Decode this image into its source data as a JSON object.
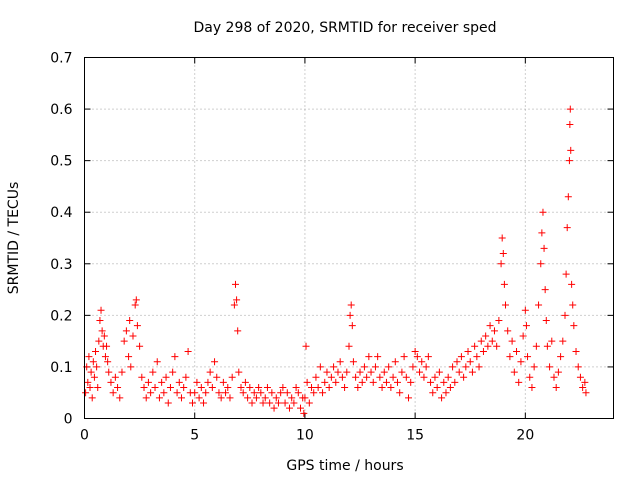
{
  "chart_data": {
    "type": "scatter",
    "title": "Day 298 of 2020, SRMTID for receiver sped",
    "xlabel": "GPS time / hours",
    "ylabel": "SRMTID / TECUs",
    "xlim": [
      0,
      24
    ],
    "ylim": [
      0,
      0.7
    ],
    "xticks": [
      0,
      5,
      10,
      15,
      20
    ],
    "yticks": [
      0,
      0.1,
      0.2,
      0.3,
      0.4,
      0.5,
      0.6,
      0.7
    ],
    "grid": true,
    "marker": "plus",
    "series": [
      {
        "name": "SRMTID",
        "color": "#ff0000",
        "points": [
          [
            0.05,
            0.05
          ],
          [
            0.1,
            0.1
          ],
          [
            0.15,
            0.07
          ],
          [
            0.2,
            0.12
          ],
          [
            0.25,
            0.06
          ],
          [
            0.3,
            0.09
          ],
          [
            0.35,
            0.04
          ],
          [
            0.4,
            0.11
          ],
          [
            0.45,
            0.08
          ],
          [
            0.5,
            0.13
          ],
          [
            0.55,
            0.1
          ],
          [
            0.6,
            0.06
          ],
          [
            0.65,
            0.15
          ],
          [
            0.7,
            0.19
          ],
          [
            0.75,
            0.21
          ],
          [
            0.8,
            0.17
          ],
          [
            0.85,
            0.14
          ],
          [
            0.9,
            0.16
          ],
          [
            0.95,
            0.12
          ],
          [
            1.0,
            0.14
          ],
          [
            1.05,
            0.11
          ],
          [
            1.1,
            0.09
          ],
          [
            1.2,
            0.07
          ],
          [
            1.3,
            0.05
          ],
          [
            1.4,
            0.08
          ],
          [
            1.5,
            0.06
          ],
          [
            1.6,
            0.04
          ],
          [
            1.7,
            0.09
          ],
          [
            1.8,
            0.15
          ],
          [
            1.9,
            0.17
          ],
          [
            2.0,
            0.12
          ],
          [
            2.05,
            0.19
          ],
          [
            2.1,
            0.1
          ],
          [
            2.2,
            0.16
          ],
          [
            2.3,
            0.22
          ],
          [
            2.35,
            0.23
          ],
          [
            2.4,
            0.18
          ],
          [
            2.5,
            0.14
          ],
          [
            2.6,
            0.08
          ],
          [
            2.7,
            0.06
          ],
          [
            2.8,
            0.04
          ],
          [
            2.9,
            0.07
          ],
          [
            3.0,
            0.05
          ],
          [
            3.1,
            0.09
          ],
          [
            3.2,
            0.06
          ],
          [
            3.3,
            0.11
          ],
          [
            3.4,
            0.04
          ],
          [
            3.5,
            0.07
          ],
          [
            3.6,
            0.05
          ],
          [
            3.7,
            0.08
          ],
          [
            3.8,
            0.03
          ],
          [
            3.9,
            0.06
          ],
          [
            4.0,
            0.09
          ],
          [
            4.1,
            0.12
          ],
          [
            4.2,
            0.05
          ],
          [
            4.3,
            0.07
          ],
          [
            4.4,
            0.04
          ],
          [
            4.5,
            0.06
          ],
          [
            4.6,
            0.08
          ],
          [
            4.7,
            0.13
          ],
          [
            4.8,
            0.05
          ],
          [
            4.9,
            0.03
          ],
          [
            5.0,
            0.05
          ],
          [
            5.1,
            0.07
          ],
          [
            5.2,
            0.04
          ],
          [
            5.3,
            0.06
          ],
          [
            5.4,
            0.03
          ],
          [
            5.5,
            0.05
          ],
          [
            5.6,
            0.07
          ],
          [
            5.7,
            0.09
          ],
          [
            5.8,
            0.06
          ],
          [
            5.9,
            0.11
          ],
          [
            6.0,
            0.08
          ],
          [
            6.1,
            0.05
          ],
          [
            6.2,
            0.04
          ],
          [
            6.3,
            0.07
          ],
          [
            6.4,
            0.05
          ],
          [
            6.5,
            0.06
          ],
          [
            6.6,
            0.04
          ],
          [
            6.7,
            0.08
          ],
          [
            6.8,
            0.22
          ],
          [
            6.85,
            0.26
          ],
          [
            6.9,
            0.23
          ],
          [
            6.95,
            0.17
          ],
          [
            7.0,
            0.09
          ],
          [
            7.1,
            0.06
          ],
          [
            7.2,
            0.05
          ],
          [
            7.3,
            0.07
          ],
          [
            7.4,
            0.04
          ],
          [
            7.5,
            0.06
          ],
          [
            7.6,
            0.03
          ],
          [
            7.7,
            0.05
          ],
          [
            7.8,
            0.04
          ],
          [
            7.9,
            0.06
          ],
          [
            8.0,
            0.05
          ],
          [
            8.1,
            0.03
          ],
          [
            8.2,
            0.04
          ],
          [
            8.3,
            0.06
          ],
          [
            8.4,
            0.03
          ],
          [
            8.5,
            0.05
          ],
          [
            8.6,
            0.02
          ],
          [
            8.7,
            0.04
          ],
          [
            8.8,
            0.03
          ],
          [
            8.9,
            0.05
          ],
          [
            9.0,
            0.06
          ],
          [
            9.1,
            0.03
          ],
          [
            9.2,
            0.05
          ],
          [
            9.3,
            0.02
          ],
          [
            9.4,
            0.04
          ],
          [
            9.5,
            0.03
          ],
          [
            9.6,
            0.06
          ],
          [
            9.7,
            0.05
          ],
          [
            9.8,
            0.02
          ],
          [
            9.9,
            0.04
          ],
          [
            9.95,
            0.01
          ],
          [
            10.0,
            0.04
          ],
          [
            10.05,
            0.14
          ],
          [
            10.1,
            0.07
          ],
          [
            10.2,
            0.03
          ],
          [
            10.3,
            0.06
          ],
          [
            10.4,
            0.05
          ],
          [
            10.5,
            0.08
          ],
          [
            10.6,
            0.06
          ],
          [
            10.7,
            0.1
          ],
          [
            10.8,
            0.05
          ],
          [
            10.9,
            0.07
          ],
          [
            11.0,
            0.09
          ],
          [
            11.1,
            0.06
          ],
          [
            11.2,
            0.08
          ],
          [
            11.3,
            0.1
          ],
          [
            11.4,
            0.07
          ],
          [
            11.5,
            0.09
          ],
          [
            11.6,
            0.11
          ],
          [
            11.7,
            0.08
          ],
          [
            11.8,
            0.06
          ],
          [
            11.9,
            0.09
          ],
          [
            12.0,
            0.14
          ],
          [
            12.05,
            0.2
          ],
          [
            12.1,
            0.22
          ],
          [
            12.15,
            0.18
          ],
          [
            12.2,
            0.11
          ],
          [
            12.3,
            0.08
          ],
          [
            12.4,
            0.06
          ],
          [
            12.5,
            0.09
          ],
          [
            12.6,
            0.07
          ],
          [
            12.7,
            0.1
          ],
          [
            12.8,
            0.08
          ],
          [
            12.9,
            0.12
          ],
          [
            13.0,
            0.09
          ],
          [
            13.1,
            0.07
          ],
          [
            13.2,
            0.1
          ],
          [
            13.3,
            0.12
          ],
          [
            13.4,
            0.08
          ],
          [
            13.5,
            0.06
          ],
          [
            13.6,
            0.09
          ],
          [
            13.7,
            0.07
          ],
          [
            13.8,
            0.1
          ],
          [
            13.9,
            0.06
          ],
          [
            14.0,
            0.08
          ],
          [
            14.1,
            0.11
          ],
          [
            14.2,
            0.07
          ],
          [
            14.3,
            0.05
          ],
          [
            14.4,
            0.09
          ],
          [
            14.5,
            0.12
          ],
          [
            14.6,
            0.08
          ],
          [
            14.7,
            0.04
          ],
          [
            14.8,
            0.07
          ],
          [
            14.9,
            0.1
          ],
          [
            15.0,
            0.13
          ],
          [
            15.1,
            0.12
          ],
          [
            15.2,
            0.09
          ],
          [
            15.3,
            0.11
          ],
          [
            15.4,
            0.08
          ],
          [
            15.5,
            0.1
          ],
          [
            15.6,
            0.12
          ],
          [
            15.7,
            0.07
          ],
          [
            15.8,
            0.05
          ],
          [
            15.9,
            0.08
          ],
          [
            16.0,
            0.06
          ],
          [
            16.1,
            0.09
          ],
          [
            16.2,
            0.04
          ],
          [
            16.3,
            0.07
          ],
          [
            16.4,
            0.05
          ],
          [
            16.5,
            0.08
          ],
          [
            16.6,
            0.06
          ],
          [
            16.7,
            0.1
          ],
          [
            16.8,
            0.07
          ],
          [
            16.9,
            0.11
          ],
          [
            17.0,
            0.09
          ],
          [
            17.1,
            0.12
          ],
          [
            17.2,
            0.08
          ],
          [
            17.3,
            0.1
          ],
          [
            17.4,
            0.13
          ],
          [
            17.5,
            0.11
          ],
          [
            17.6,
            0.09
          ],
          [
            17.7,
            0.14
          ],
          [
            17.8,
            0.12
          ],
          [
            17.9,
            0.1
          ],
          [
            18.0,
            0.15
          ],
          [
            18.1,
            0.13
          ],
          [
            18.2,
            0.16
          ],
          [
            18.3,
            0.14
          ],
          [
            18.4,
            0.18
          ],
          [
            18.5,
            0.15
          ],
          [
            18.6,
            0.17
          ],
          [
            18.7,
            0.14
          ],
          [
            18.8,
            0.19
          ],
          [
            18.9,
            0.3
          ],
          [
            18.95,
            0.35
          ],
          [
            19.0,
            0.32
          ],
          [
            19.05,
            0.26
          ],
          [
            19.1,
            0.22
          ],
          [
            19.2,
            0.17
          ],
          [
            19.3,
            0.12
          ],
          [
            19.4,
            0.15
          ],
          [
            19.5,
            0.09
          ],
          [
            19.6,
            0.13
          ],
          [
            19.7,
            0.07
          ],
          [
            19.8,
            0.11
          ],
          [
            19.9,
            0.16
          ],
          [
            20.0,
            0.21
          ],
          [
            20.05,
            0.18
          ],
          [
            20.1,
            0.12
          ],
          [
            20.2,
            0.08
          ],
          [
            20.3,
            0.06
          ],
          [
            20.4,
            0.1
          ],
          [
            20.5,
            0.14
          ],
          [
            20.6,
            0.22
          ],
          [
            20.7,
            0.3
          ],
          [
            20.75,
            0.36
          ],
          [
            20.8,
            0.4
          ],
          [
            20.85,
            0.33
          ],
          [
            20.9,
            0.25
          ],
          [
            20.95,
            0.19
          ],
          [
            21.0,
            0.14
          ],
          [
            21.1,
            0.1
          ],
          [
            21.2,
            0.15
          ],
          [
            21.3,
            0.08
          ],
          [
            21.4,
            0.06
          ],
          [
            21.5,
            0.09
          ],
          [
            21.6,
            0.12
          ],
          [
            21.7,
            0.15
          ],
          [
            21.8,
            0.2
          ],
          [
            21.85,
            0.28
          ],
          [
            21.9,
            0.37
          ],
          [
            21.95,
            0.43
          ],
          [
            22.0,
            0.5
          ],
          [
            22.02,
            0.57
          ],
          [
            22.04,
            0.6
          ],
          [
            22.06,
            0.52
          ],
          [
            22.1,
            0.26
          ],
          [
            22.15,
            0.22
          ],
          [
            22.2,
            0.18
          ],
          [
            22.3,
            0.13
          ],
          [
            22.4,
            0.1
          ],
          [
            22.5,
            0.08
          ],
          [
            22.6,
            0.06
          ],
          [
            22.7,
            0.07
          ],
          [
            22.75,
            0.05
          ]
        ]
      }
    ]
  }
}
